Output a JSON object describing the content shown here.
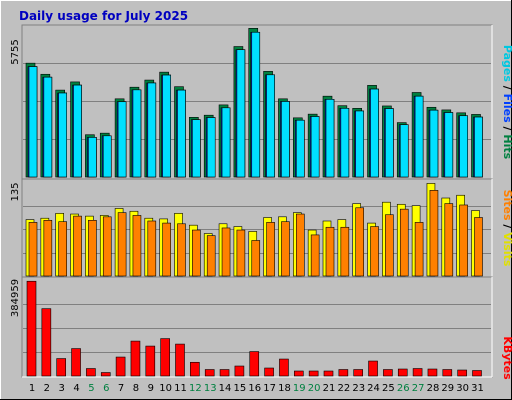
{
  "title": "Daily usage for July 2025",
  "colors": {
    "background": "#c0c0c0",
    "title": "#0000c0",
    "hits": "#008040",
    "files": "#0040ff",
    "pages": "#00e0ff",
    "visits": "#ffff00",
    "sites": "#ff8000",
    "kbytes": "#ff0000",
    "weekday_label": "#000000",
    "weekend_label": "#008040",
    "grid": "#808080"
  },
  "chart_data": [
    {
      "type": "bar",
      "panel": "top",
      "ymax_label": "5755",
      "ylim": [
        0,
        5755
      ],
      "right_labels": [
        "Pages",
        "Files",
        "Hits"
      ],
      "categories": [
        "1",
        "2",
        "3",
        "4",
        "5",
        "6",
        "7",
        "8",
        "9",
        "10",
        "11",
        "12",
        "13",
        "14",
        "15",
        "16",
        "17",
        "18",
        "19",
        "20",
        "21",
        "22",
        "23",
        "24",
        "25",
        "26",
        "27",
        "28",
        "29",
        "30",
        "31"
      ],
      "weekend_days": [
        "5",
        "6",
        "12",
        "13",
        "19",
        "20",
        "26",
        "27"
      ],
      "series": [
        {
          "name": "Hits",
          "values": [
            4310,
            3890,
            3290,
            3600,
            1600,
            1660,
            2960,
            3400,
            3670,
            3970,
            3420,
            2260,
            2340,
            2730,
            4940,
            5630,
            4000,
            2960,
            2240,
            2380,
            3060,
            2700,
            2600,
            3470,
            2690,
            2060,
            3200,
            2640,
            2540,
            2430,
            2370
          ]
        },
        {
          "name": "Files",
          "values": [
            4180,
            3780,
            3180,
            3480,
            1500,
            1560,
            2850,
            3300,
            3560,
            3860,
            3290,
            2170,
            2250,
            2620,
            4820,
            5480,
            3870,
            2860,
            2150,
            2290,
            2940,
            2600,
            2500,
            3330,
            2590,
            1980,
            3060,
            2530,
            2440,
            2320,
            2270
          ]
        },
        {
          "name": "Pages",
          "values": [
            4180,
            3780,
            3180,
            3480,
            1500,
            1560,
            2850,
            3300,
            3560,
            3860,
            3290,
            2170,
            2250,
            2620,
            4820,
            5480,
            3870,
            2860,
            2150,
            2290,
            2940,
            2600,
            2500,
            3330,
            2590,
            1980,
            3060,
            2530,
            2440,
            2320,
            2270
          ]
        }
      ]
    },
    {
      "type": "bar",
      "panel": "middle",
      "ymax_label": "135",
      "ylim": [
        0,
        135
      ],
      "right_labels": [
        "Sites",
        "Visits"
      ],
      "series": [
        {
          "name": "Visits",
          "values": [
            81,
            83,
            90,
            89,
            86,
            87,
            97,
            93,
            83,
            82,
            90,
            73,
            61,
            75,
            71,
            64,
            84,
            85,
            91,
            66,
            79,
            81,
            104,
            76,
            106,
            103,
            101,
            133,
            112,
            116,
            94
          ]
        },
        {
          "name": "Sites",
          "values": [
            77,
            80,
            78,
            86,
            80,
            85,
            91,
            87,
            79,
            76,
            75,
            66,
            58,
            69,
            66,
            51,
            77,
            78,
            89,
            59,
            70,
            70,
            98,
            71,
            88,
            96,
            77,
            123,
            104,
            102,
            84
          ]
        }
      ]
    },
    {
      "type": "bar",
      "panel": "bottom",
      "ymax_label": "384959",
      "ylim": [
        0,
        384959
      ],
      "right_labels": [
        "KBytes"
      ],
      "series": [
        {
          "name": "KBytes",
          "values": [
            380000,
            270000,
            70000,
            110000,
            30000,
            14000,
            76000,
            140000,
            120000,
            150000,
            128000,
            55000,
            26000,
            26000,
            40000,
            98000,
            32000,
            68000,
            20000,
            20000,
            20000,
            26000,
            26000,
            60000,
            26000,
            28000,
            30000,
            28000,
            26000,
            24000,
            22000
          ]
        }
      ]
    }
  ]
}
